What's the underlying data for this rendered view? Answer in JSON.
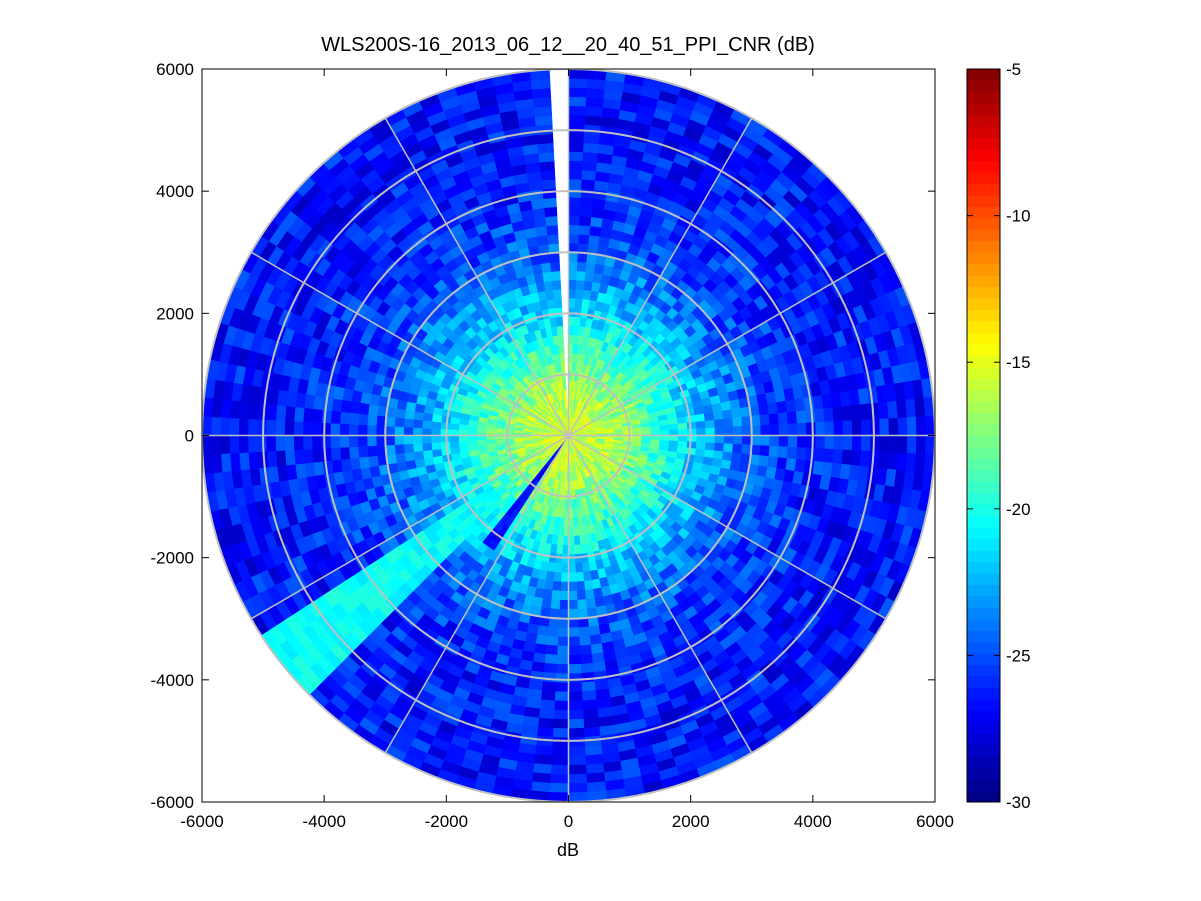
{
  "chart_data": {
    "type": "heatmap",
    "subtype": "polar-ppi",
    "title": "WLS200S-16_2013_06_12__20_40_51_PPI_CNR (dB)",
    "xlabel": "dB",
    "ylabel": "",
    "xlim": [
      -6000,
      6000
    ],
    "ylim": [
      -6000,
      6000
    ],
    "xticks": [
      -6000,
      -4000,
      -2000,
      0,
      2000,
      4000,
      6000
    ],
    "yticks": [
      -6000,
      -4000,
      -2000,
      0,
      2000,
      4000,
      6000
    ],
    "max_range": 6000,
    "range_rings": [
      1000,
      2000,
      3000,
      4000,
      5000,
      6000
    ],
    "spoke_angles_deg": [
      0,
      30,
      60,
      90,
      120,
      150,
      180,
      210,
      240,
      270,
      300,
      330
    ],
    "grid": true,
    "colormap": "jet",
    "colorbar": {
      "location": "right",
      "range": [
        -30,
        -5
      ],
      "ticks": [
        -30,
        -25,
        -20,
        -15,
        -10,
        -5
      ]
    },
    "field": {
      "center_value": -15.5,
      "edge_value": -26.5,
      "noise_amplitude": 1.8,
      "range_bin": 150,
      "azimuth_step_deg": 3
    },
    "gap_sectors": [
      {
        "azimuth_from_north_deg": [
          358.5,
          1.5
        ],
        "value": null
      }
    ],
    "enhanced_sectors": [
      {
        "azimuth_from_north_deg": [
          226,
          236
        ],
        "range": [
          1500,
          6000
        ],
        "value": -20.5
      },
      {
        "azimuth_from_north_deg": [
          212,
          218
        ],
        "range": [
          0,
          2200
        ],
        "value": -26.5
      },
      {
        "azimuth_from_north_deg": [
          41,
          43
        ],
        "range": [
          300,
          2800
        ],
        "value": -20.5
      }
    ]
  }
}
